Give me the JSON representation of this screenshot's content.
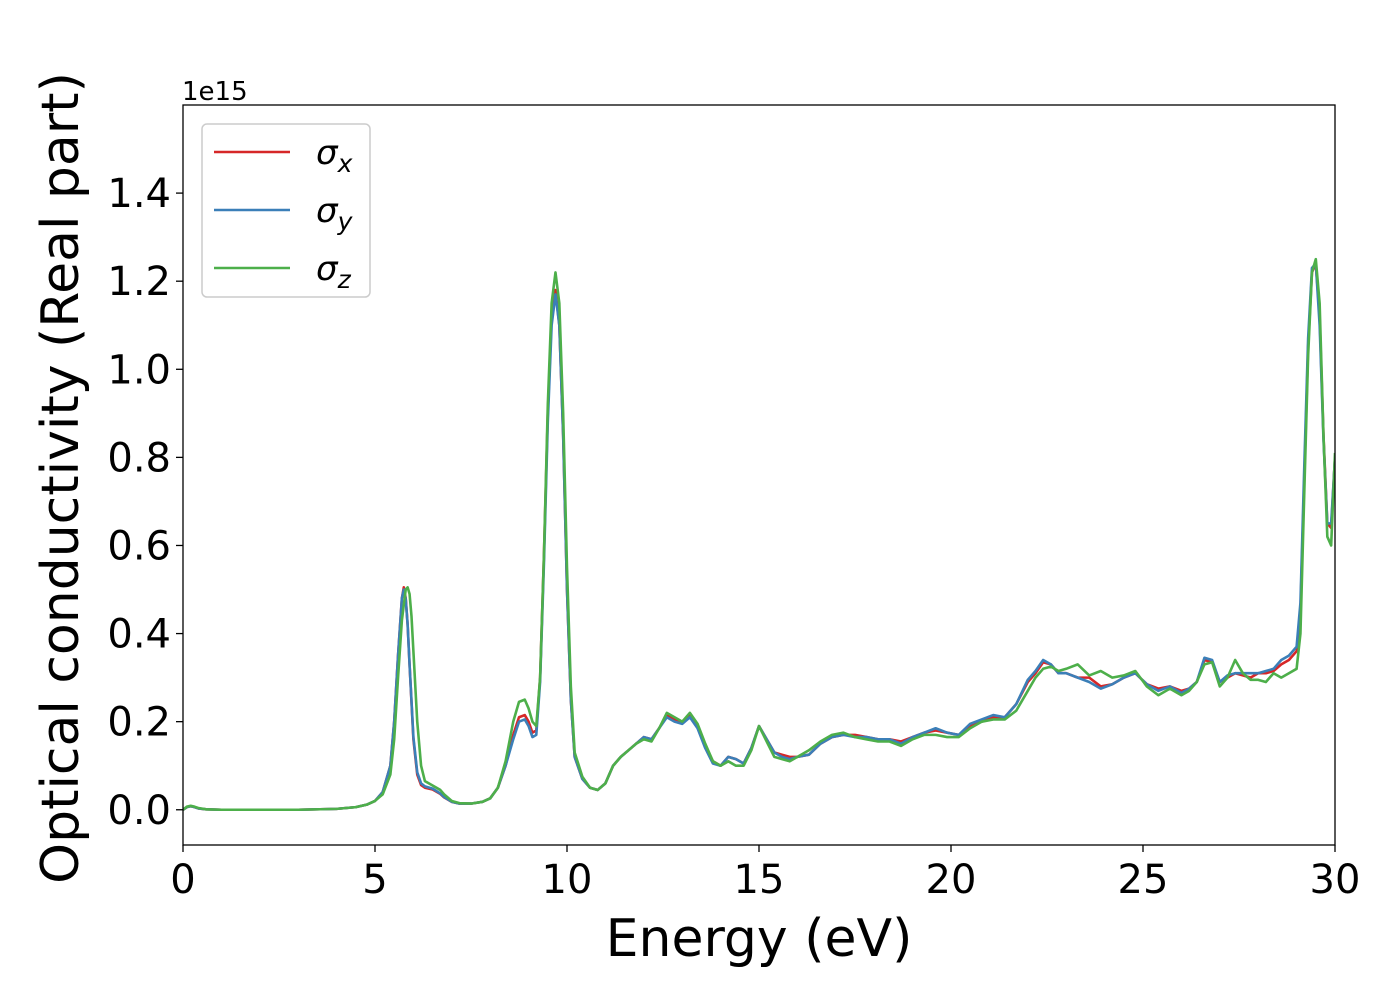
{
  "chart_data": {
    "type": "line",
    "title": "",
    "xlabel": "Energy (eV)",
    "ylabel": "Optical conductivity (Real part)",
    "y_offset_label": "1e15",
    "y_scale_factor": 1000000000000000.0,
    "xlim": [
      0,
      30
    ],
    "ylim": [
      -0.08,
      1.6
    ],
    "x_ticks": [
      0,
      5,
      10,
      15,
      20,
      25,
      30
    ],
    "x_tick_labels": [
      "0",
      "5",
      "10",
      "15",
      "20",
      "25",
      "30"
    ],
    "y_ticks": [
      0.0,
      0.2,
      0.4,
      0.6,
      0.8,
      1.0,
      1.2,
      1.4
    ],
    "y_tick_labels": [
      "0.0",
      "0.2",
      "0.4",
      "0.6",
      "0.8",
      "1.0",
      "1.2",
      "1.4"
    ],
    "grid": false,
    "legend_position": "top-left",
    "series": [
      {
        "name": "σx",
        "symbol": "σ",
        "subscript": "x",
        "color": "#d62728",
        "x": [
          0,
          0.1,
          0.2,
          0.3,
          0.4,
          0.6,
          1.0,
          2.0,
          3.0,
          4.0,
          4.5,
          4.8,
          5.0,
          5.2,
          5.4,
          5.5,
          5.6,
          5.7,
          5.75,
          5.8,
          5.85,
          5.9,
          6.0,
          6.1,
          6.2,
          6.3,
          6.5,
          6.7,
          6.8,
          7.0,
          7.2,
          7.5,
          7.8,
          8.0,
          8.2,
          8.4,
          8.6,
          8.75,
          8.9,
          9.0,
          9.1,
          9.2,
          9.3,
          9.4,
          9.5,
          9.6,
          9.7,
          9.8,
          9.9,
          10.0,
          10.1,
          10.2,
          10.4,
          10.6,
          10.8,
          11.0,
          11.2,
          11.4,
          11.6,
          11.8,
          12.0,
          12.2,
          12.4,
          12.6,
          12.8,
          13.0,
          13.2,
          13.4,
          13.6,
          13.8,
          14.0,
          14.2,
          14.4,
          14.6,
          14.8,
          15.0,
          15.2,
          15.4,
          15.6,
          15.8,
          16.0,
          16.3,
          16.6,
          16.9,
          17.2,
          17.5,
          17.8,
          18.1,
          18.4,
          18.7,
          19.0,
          19.3,
          19.6,
          19.9,
          20.2,
          20.5,
          20.8,
          21.1,
          21.4,
          21.7,
          22.0,
          22.2,
          22.4,
          22.6,
          22.8,
          23.0,
          23.3,
          23.6,
          23.9,
          24.2,
          24.5,
          24.8,
          25.1,
          25.4,
          25.7,
          26.0,
          26.2,
          26.4,
          26.6,
          26.8,
          27.0,
          27.2,
          27.4,
          27.6,
          27.8,
          28.0,
          28.2,
          28.4,
          28.6,
          28.8,
          29.0,
          29.1,
          29.2,
          29.3,
          29.4,
          29.5,
          29.6,
          29.7,
          29.8,
          29.9,
          30.0
        ],
        "y": [
          0.0,
          0.006,
          0.008,
          0.006,
          0.003,
          0.001,
          0.0,
          0.0,
          0.0,
          0.002,
          0.006,
          0.012,
          0.02,
          0.04,
          0.1,
          0.2,
          0.35,
          0.48,
          0.505,
          0.48,
          0.42,
          0.33,
          0.16,
          0.08,
          0.056,
          0.05,
          0.046,
          0.036,
          0.028,
          0.018,
          0.014,
          0.014,
          0.018,
          0.026,
          0.05,
          0.1,
          0.17,
          0.21,
          0.215,
          0.2,
          0.175,
          0.18,
          0.3,
          0.58,
          0.9,
          1.12,
          1.18,
          1.1,
          0.85,
          0.5,
          0.25,
          0.12,
          0.07,
          0.05,
          0.045,
          0.06,
          0.1,
          0.12,
          0.135,
          0.15,
          0.165,
          0.16,
          0.185,
          0.215,
          0.205,
          0.2,
          0.215,
          0.19,
          0.145,
          0.11,
          0.1,
          0.12,
          0.115,
          0.105,
          0.14,
          0.19,
          0.16,
          0.13,
          0.125,
          0.12,
          0.12,
          0.125,
          0.15,
          0.165,
          0.17,
          0.17,
          0.165,
          0.16,
          0.16,
          0.155,
          0.165,
          0.175,
          0.18,
          0.175,
          0.17,
          0.19,
          0.2,
          0.21,
          0.21,
          0.24,
          0.29,
          0.31,
          0.335,
          0.33,
          0.31,
          0.31,
          0.3,
          0.3,
          0.28,
          0.285,
          0.3,
          0.31,
          0.285,
          0.275,
          0.28,
          0.27,
          0.275,
          0.29,
          0.34,
          0.335,
          0.29,
          0.3,
          0.31,
          0.305,
          0.3,
          0.31,
          0.31,
          0.315,
          0.33,
          0.34,
          0.36,
          0.45,
          0.75,
          1.05,
          1.22,
          1.24,
          1.12,
          0.85,
          0.65,
          0.64,
          0.8
        ]
      },
      {
        "name": "σy",
        "symbol": "σ",
        "subscript": "y",
        "color": "#3b7fb8",
        "x": [
          0,
          0.1,
          0.2,
          0.3,
          0.4,
          0.6,
          1.0,
          2.0,
          3.0,
          4.0,
          4.5,
          4.8,
          5.0,
          5.2,
          5.4,
          5.5,
          5.6,
          5.7,
          5.75,
          5.8,
          5.85,
          5.9,
          6.0,
          6.1,
          6.2,
          6.3,
          6.5,
          6.7,
          6.8,
          7.0,
          7.2,
          7.5,
          7.8,
          8.0,
          8.2,
          8.4,
          8.6,
          8.75,
          8.9,
          9.0,
          9.1,
          9.2,
          9.3,
          9.4,
          9.5,
          9.6,
          9.7,
          9.8,
          9.9,
          10.0,
          10.1,
          10.2,
          10.4,
          10.6,
          10.8,
          11.0,
          11.2,
          11.4,
          11.6,
          11.8,
          12.0,
          12.2,
          12.4,
          12.6,
          12.8,
          13.0,
          13.2,
          13.4,
          13.6,
          13.8,
          14.0,
          14.2,
          14.4,
          14.6,
          14.8,
          15.0,
          15.2,
          15.4,
          15.6,
          15.8,
          16.0,
          16.3,
          16.6,
          16.9,
          17.2,
          17.5,
          17.8,
          18.1,
          18.4,
          18.7,
          19.0,
          19.3,
          19.6,
          19.9,
          20.2,
          20.5,
          20.8,
          21.1,
          21.4,
          21.7,
          22.0,
          22.2,
          22.4,
          22.6,
          22.8,
          23.0,
          23.3,
          23.6,
          23.9,
          24.2,
          24.5,
          24.8,
          25.1,
          25.4,
          25.7,
          26.0,
          26.2,
          26.4,
          26.6,
          26.8,
          27.0,
          27.2,
          27.4,
          27.6,
          27.8,
          28.0,
          28.2,
          28.4,
          28.6,
          28.8,
          29.0,
          29.1,
          29.2,
          29.3,
          29.4,
          29.5,
          29.6,
          29.7,
          29.8,
          29.9,
          30.0
        ],
        "y": [
          0.0,
          0.006,
          0.008,
          0.006,
          0.003,
          0.001,
          0.0,
          0.0,
          0.0,
          0.002,
          0.006,
          0.012,
          0.02,
          0.04,
          0.1,
          0.2,
          0.35,
          0.48,
          0.5,
          0.478,
          0.42,
          0.33,
          0.165,
          0.085,
          0.06,
          0.053,
          0.048,
          0.037,
          0.029,
          0.018,
          0.014,
          0.014,
          0.018,
          0.026,
          0.05,
          0.1,
          0.16,
          0.2,
          0.205,
          0.19,
          0.165,
          0.17,
          0.29,
          0.56,
          0.88,
          1.1,
          1.17,
          1.1,
          0.85,
          0.5,
          0.25,
          0.12,
          0.07,
          0.05,
          0.045,
          0.06,
          0.1,
          0.12,
          0.135,
          0.15,
          0.165,
          0.16,
          0.185,
          0.21,
          0.2,
          0.195,
          0.21,
          0.185,
          0.14,
          0.105,
          0.1,
          0.12,
          0.115,
          0.105,
          0.14,
          0.19,
          0.16,
          0.13,
          0.12,
          0.115,
          0.12,
          0.125,
          0.15,
          0.165,
          0.17,
          0.165,
          0.165,
          0.16,
          0.16,
          0.15,
          0.165,
          0.175,
          0.185,
          0.175,
          0.17,
          0.195,
          0.205,
          0.215,
          0.21,
          0.24,
          0.295,
          0.315,
          0.34,
          0.33,
          0.31,
          0.31,
          0.3,
          0.29,
          0.275,
          0.285,
          0.3,
          0.31,
          0.285,
          0.27,
          0.28,
          0.265,
          0.275,
          0.29,
          0.345,
          0.34,
          0.29,
          0.305,
          0.31,
          0.31,
          0.31,
          0.31,
          0.315,
          0.32,
          0.34,
          0.35,
          0.37,
          0.47,
          0.78,
          1.07,
          1.23,
          1.24,
          1.1,
          0.84,
          0.65,
          0.65,
          0.8
        ]
      },
      {
        "name": "σz",
        "symbol": "σ",
        "subscript": "z",
        "color": "#4daf4a",
        "x": [
          0,
          0.1,
          0.2,
          0.3,
          0.4,
          0.6,
          1.0,
          2.0,
          3.0,
          4.0,
          4.5,
          4.8,
          5.0,
          5.2,
          5.4,
          5.5,
          5.6,
          5.7,
          5.8,
          5.85,
          5.9,
          5.95,
          6.0,
          6.1,
          6.2,
          6.3,
          6.5,
          6.7,
          6.8,
          7.0,
          7.2,
          7.5,
          7.8,
          8.0,
          8.2,
          8.4,
          8.6,
          8.75,
          8.9,
          9.0,
          9.1,
          9.2,
          9.3,
          9.4,
          9.5,
          9.6,
          9.7,
          9.8,
          9.9,
          10.0,
          10.1,
          10.2,
          10.4,
          10.6,
          10.8,
          11.0,
          11.2,
          11.4,
          11.6,
          11.8,
          12.0,
          12.2,
          12.4,
          12.6,
          12.8,
          13.0,
          13.2,
          13.4,
          13.6,
          13.8,
          14.0,
          14.2,
          14.4,
          14.6,
          14.8,
          15.0,
          15.2,
          15.4,
          15.6,
          15.8,
          16.0,
          16.3,
          16.6,
          16.9,
          17.2,
          17.5,
          17.8,
          18.1,
          18.4,
          18.7,
          19.0,
          19.3,
          19.6,
          19.9,
          20.2,
          20.5,
          20.8,
          21.1,
          21.4,
          21.7,
          22.0,
          22.2,
          22.4,
          22.6,
          22.8,
          23.0,
          23.3,
          23.6,
          23.9,
          24.2,
          24.5,
          24.8,
          25.1,
          25.4,
          25.7,
          26.0,
          26.2,
          26.4,
          26.6,
          26.8,
          27.0,
          27.2,
          27.4,
          27.6,
          27.8,
          28.0,
          28.2,
          28.4,
          28.6,
          28.8,
          29.0,
          29.1,
          29.2,
          29.3,
          29.4,
          29.5,
          29.6,
          29.7,
          29.8,
          29.9,
          30.0
        ],
        "y": [
          0.0,
          0.007,
          0.009,
          0.007,
          0.004,
          0.001,
          0.0,
          0.0,
          0.0,
          0.002,
          0.006,
          0.012,
          0.02,
          0.035,
          0.08,
          0.16,
          0.3,
          0.43,
          0.5,
          0.505,
          0.49,
          0.44,
          0.36,
          0.2,
          0.1,
          0.065,
          0.055,
          0.045,
          0.035,
          0.02,
          0.015,
          0.014,
          0.018,
          0.026,
          0.05,
          0.11,
          0.2,
          0.245,
          0.25,
          0.23,
          0.2,
          0.19,
          0.3,
          0.58,
          0.92,
          1.15,
          1.22,
          1.15,
          0.9,
          0.55,
          0.28,
          0.13,
          0.075,
          0.05,
          0.045,
          0.06,
          0.1,
          0.12,
          0.135,
          0.15,
          0.16,
          0.155,
          0.185,
          0.22,
          0.21,
          0.2,
          0.22,
          0.195,
          0.15,
          0.11,
          0.1,
          0.11,
          0.1,
          0.1,
          0.135,
          0.19,
          0.155,
          0.12,
          0.115,
          0.11,
          0.12,
          0.135,
          0.155,
          0.17,
          0.175,
          0.165,
          0.16,
          0.155,
          0.155,
          0.145,
          0.16,
          0.17,
          0.17,
          0.165,
          0.165,
          0.185,
          0.2,
          0.205,
          0.205,
          0.225,
          0.27,
          0.3,
          0.32,
          0.325,
          0.315,
          0.32,
          0.33,
          0.305,
          0.315,
          0.3,
          0.305,
          0.315,
          0.28,
          0.26,
          0.275,
          0.26,
          0.27,
          0.29,
          0.33,
          0.335,
          0.28,
          0.3,
          0.34,
          0.31,
          0.295,
          0.295,
          0.29,
          0.31,
          0.3,
          0.31,
          0.32,
          0.4,
          0.72,
          1.03,
          1.22,
          1.25,
          1.15,
          0.85,
          0.62,
          0.6,
          0.81
        ]
      }
    ]
  }
}
